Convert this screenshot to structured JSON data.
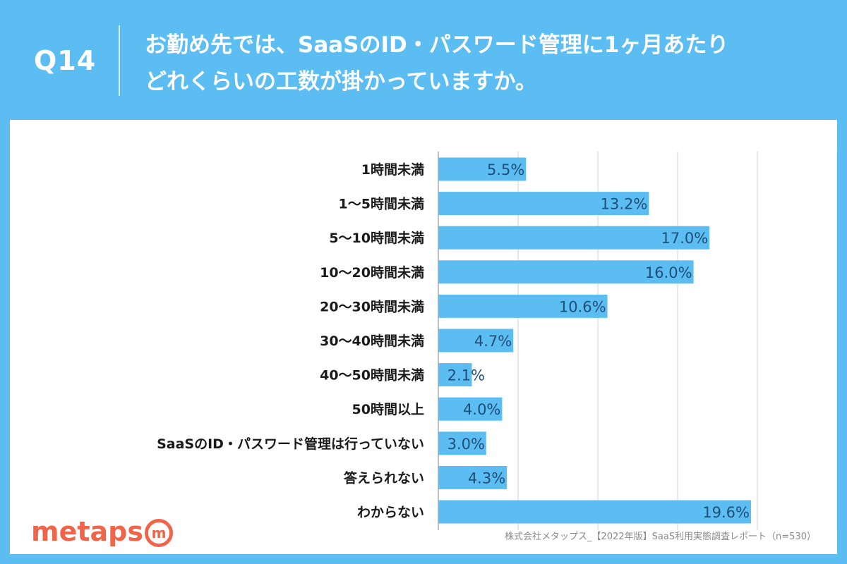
{
  "header": {
    "question_number": "Q14",
    "title_line1": "お勤め先では、SaaSのID・パスワード管理に1ヶ月あたり",
    "title_line2": "どれくらいの工数が掛かっていますか。"
  },
  "footer": {
    "brand": "metaps",
    "brand_icon": "m",
    "source": "株式会社メタップス_【2022年版】SaaS利用実態調査レポート（n=530）"
  },
  "colors": {
    "background": "#5bbdf2",
    "bar": "#5bbdf2",
    "bar_label": "#1f4f78",
    "brand": "#f0654a"
  },
  "chart_data": {
    "type": "bar",
    "orientation": "horizontal",
    "title": "お勤め先では、SaaSのID・パスワード管理に1ヶ月あたりどれくらいの工数が掛かっていますか。",
    "unit": "%",
    "categories": [
      "1時間未満",
      "1〜5時間未満",
      "5〜10時間未満",
      "10〜20時間未満",
      "20〜30時間未満",
      "30〜40時間未満",
      "40〜50時間未満",
      "50時間以上",
      "SaaSのID・パスワード管理は行っていない",
      "答えられない",
      "わからない"
    ],
    "values": [
      5.5,
      13.2,
      17.0,
      16.0,
      10.6,
      4.7,
      2.1,
      4.0,
      3.0,
      4.3,
      19.6
    ],
    "value_labels": [
      "5.5%",
      "13.2%",
      "17.0%",
      "16.0%",
      "10.6%",
      "4.7%",
      "2.1%",
      "4.0%",
      "3.0%",
      "4.3%",
      "19.6%"
    ],
    "xlim": [
      0,
      25
    ],
    "gridlines": [
      0,
      5,
      10,
      15,
      20,
      25
    ],
    "grid": true
  }
}
